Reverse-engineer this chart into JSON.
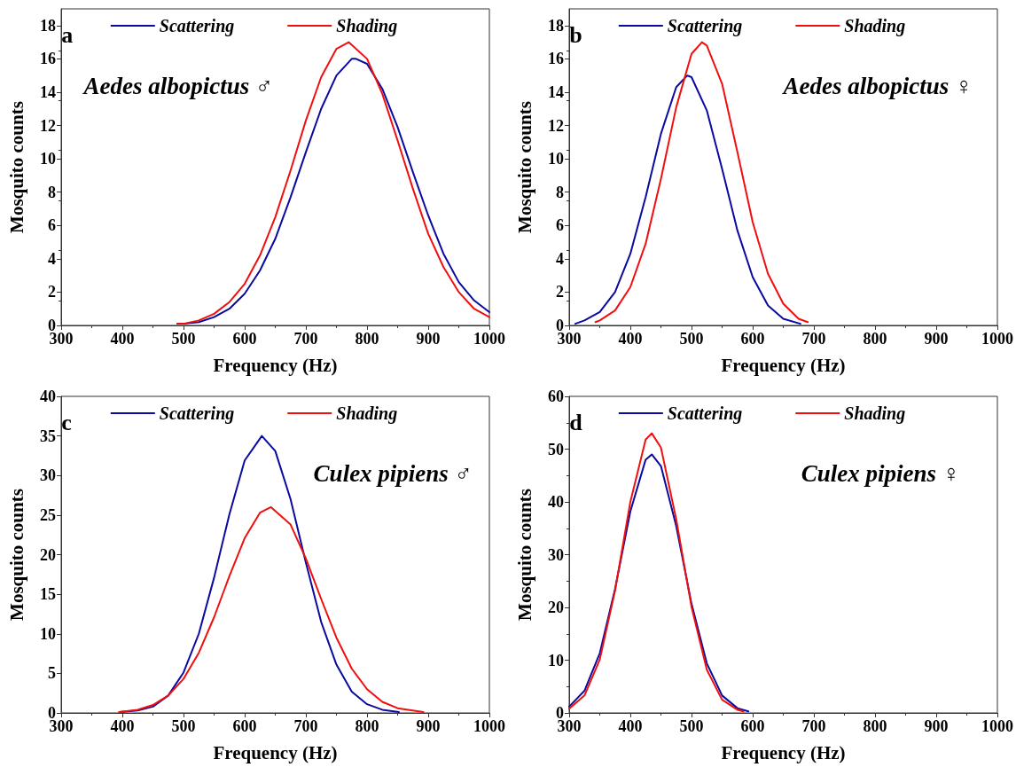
{
  "chart_data": [
    {
      "type": "line",
      "xlabel": "Frequency (Hz)",
      "ylabel": "Mosquito counts",
      "annotations": [
        "a",
        "Aedes albopictus ♂"
      ],
      "xlim": [
        300,
        1000
      ],
      "xticks": [
        300,
        400,
        500,
        600,
        700,
        800,
        900,
        1000
      ],
      "ylim": [
        0,
        19
      ],
      "yticks": [
        0,
        2,
        4,
        6,
        8,
        10,
        12,
        14,
        16,
        18
      ],
      "legend": "top",
      "grid": false,
      "marker": "none",
      "line_style": "solid",
      "series": [
        {
          "name": "Scattering",
          "color": "#0a0aa0",
          "x": [
            490,
            500,
            525,
            550,
            575,
            600,
            625,
            650,
            675,
            700,
            725,
            750,
            775,
            782,
            800,
            825,
            850,
            875,
            900,
            925,
            950,
            975,
            1000
          ],
          "values": [
            0.1,
            0.1,
            0.2,
            0.5,
            1.0,
            1.9,
            3.3,
            5.2,
            7.7,
            10.4,
            13.0,
            15.0,
            16.0,
            16.0,
            15.7,
            14.2,
            11.9,
            9.2,
            6.6,
            4.3,
            2.6,
            1.5,
            0.8
          ]
        },
        {
          "name": "Shading",
          "color": "#f00f0f",
          "x": [
            490,
            500,
            525,
            550,
            575,
            600,
            625,
            650,
            675,
            700,
            725,
            750,
            770,
            800,
            825,
            850,
            875,
            900,
            925,
            950,
            975,
            1000
          ],
          "values": [
            0.1,
            0.1,
            0.3,
            0.7,
            1.4,
            2.5,
            4.2,
            6.5,
            9.3,
            12.3,
            14.9,
            16.6,
            17.0,
            16.0,
            13.9,
            11.1,
            8.2,
            5.5,
            3.5,
            2.0,
            1.0,
            0.5
          ]
        }
      ]
    },
    {
      "type": "line",
      "xlabel": "Frequency (Hz)",
      "ylabel": "Mosquito counts",
      "annotations": [
        "b",
        "Aedes albopictus ♀"
      ],
      "xlim": [
        300,
        1000
      ],
      "xticks": [
        300,
        400,
        500,
        600,
        700,
        800,
        900,
        1000
      ],
      "ylim": [
        0,
        19
      ],
      "yticks": [
        0,
        2,
        4,
        6,
        8,
        10,
        12,
        14,
        16,
        18
      ],
      "legend": "top",
      "grid": false,
      "marker": "none",
      "line_style": "solid",
      "series": [
        {
          "name": "Scattering",
          "color": "#0a0aa0",
          "x": [
            310,
            325,
            350,
            375,
            400,
            425,
            450,
            475,
            493,
            500,
            525,
            550,
            575,
            600,
            625,
            650,
            678
          ],
          "values": [
            0.1,
            0.3,
            0.8,
            2.0,
            4.3,
            7.7,
            11.5,
            14.3,
            15.0,
            14.9,
            12.9,
            9.4,
            5.7,
            2.9,
            1.2,
            0.4,
            0.1
          ]
        },
        {
          "name": "Shading",
          "color": "#f00f0f",
          "x": [
            343,
            350,
            375,
            400,
            425,
            450,
            475,
            500,
            517,
            525,
            550,
            575,
            600,
            625,
            650,
            675,
            690
          ],
          "values": [
            0.2,
            0.3,
            0.9,
            2.3,
            4.9,
            8.8,
            13.1,
            16.3,
            17.0,
            16.8,
            14.5,
            10.4,
            6.2,
            3.1,
            1.3,
            0.4,
            0.2
          ]
        }
      ]
    },
    {
      "type": "line",
      "xlabel": "Frequency (Hz)",
      "ylabel": "Mosquito counts",
      "annotations": [
        "c",
        "Culex pipiens ♂"
      ],
      "xlim": [
        300,
        1000
      ],
      "xticks": [
        300,
        400,
        500,
        600,
        700,
        800,
        900,
        1000
      ],
      "ylim": [
        0,
        40
      ],
      "yticks": [
        0,
        5,
        10,
        15,
        20,
        25,
        30,
        35,
        40
      ],
      "legend": "top",
      "grid": false,
      "marker": "none",
      "line_style": "solid",
      "series": [
        {
          "name": "Scattering",
          "color": "#0a0aa0",
          "x": [
            395,
            425,
            450,
            475,
            500,
            525,
            550,
            575,
            600,
            628,
            650,
            675,
            700,
            725,
            750,
            775,
            800,
            825,
            852
          ],
          "values": [
            0.1,
            0.3,
            0.8,
            2.2,
            5.1,
            10.0,
            17.1,
            25.1,
            31.9,
            35.0,
            33.1,
            27.0,
            19.0,
            11.5,
            6.1,
            2.7,
            1.1,
            0.4,
            0.1
          ]
        },
        {
          "name": "Shading",
          "color": "#f00f0f",
          "x": [
            395,
            425,
            450,
            475,
            500,
            525,
            550,
            575,
            600,
            625,
            643,
            675,
            700,
            725,
            750,
            775,
            800,
            825,
            850,
            892
          ],
          "values": [
            0.1,
            0.4,
            1.0,
            2.2,
            4.3,
            7.6,
            12.1,
            17.3,
            22.1,
            25.3,
            26.0,
            23.8,
            19.5,
            14.4,
            9.5,
            5.6,
            3.0,
            1.4,
            0.6,
            0.1
          ]
        }
      ]
    },
    {
      "type": "line",
      "xlabel": "Frequency (Hz)",
      "ylabel": "Mosquito counts",
      "annotations": [
        "d",
        "Culex pipiens ♀"
      ],
      "xlim": [
        300,
        1000
      ],
      "xticks": [
        300,
        400,
        500,
        600,
        700,
        800,
        900,
        1000
      ],
      "ylim": [
        0,
        60
      ],
      "yticks": [
        0,
        10,
        20,
        30,
        40,
        50,
        60
      ],
      "legend": "top",
      "grid": false,
      "marker": "none",
      "line_style": "solid",
      "series": [
        {
          "name": "Scattering",
          "color": "#0a0aa0",
          "x": [
            300,
            325,
            350,
            375,
            400,
            425,
            435,
            450,
            475,
            500,
            525,
            550,
            575,
            593
          ],
          "values": [
            1.2,
            4.2,
            11.3,
            23.5,
            38.2,
            48.0,
            49.0,
            46.8,
            35.4,
            20.7,
            9.4,
            3.3,
            0.9,
            0.3
          ]
        },
        {
          "name": "Shading",
          "color": "#f00f0f",
          "x": [
            300,
            325,
            350,
            375,
            400,
            425,
            435,
            450,
            475,
            500,
            525,
            550,
            575,
            585
          ],
          "values": [
            0.8,
            3.3,
            10.1,
            23.2,
            40.0,
            51.8,
            53.0,
            50.3,
            36.7,
            20.1,
            8.2,
            2.5,
            0.6,
            0.3
          ]
        }
      ]
    }
  ]
}
